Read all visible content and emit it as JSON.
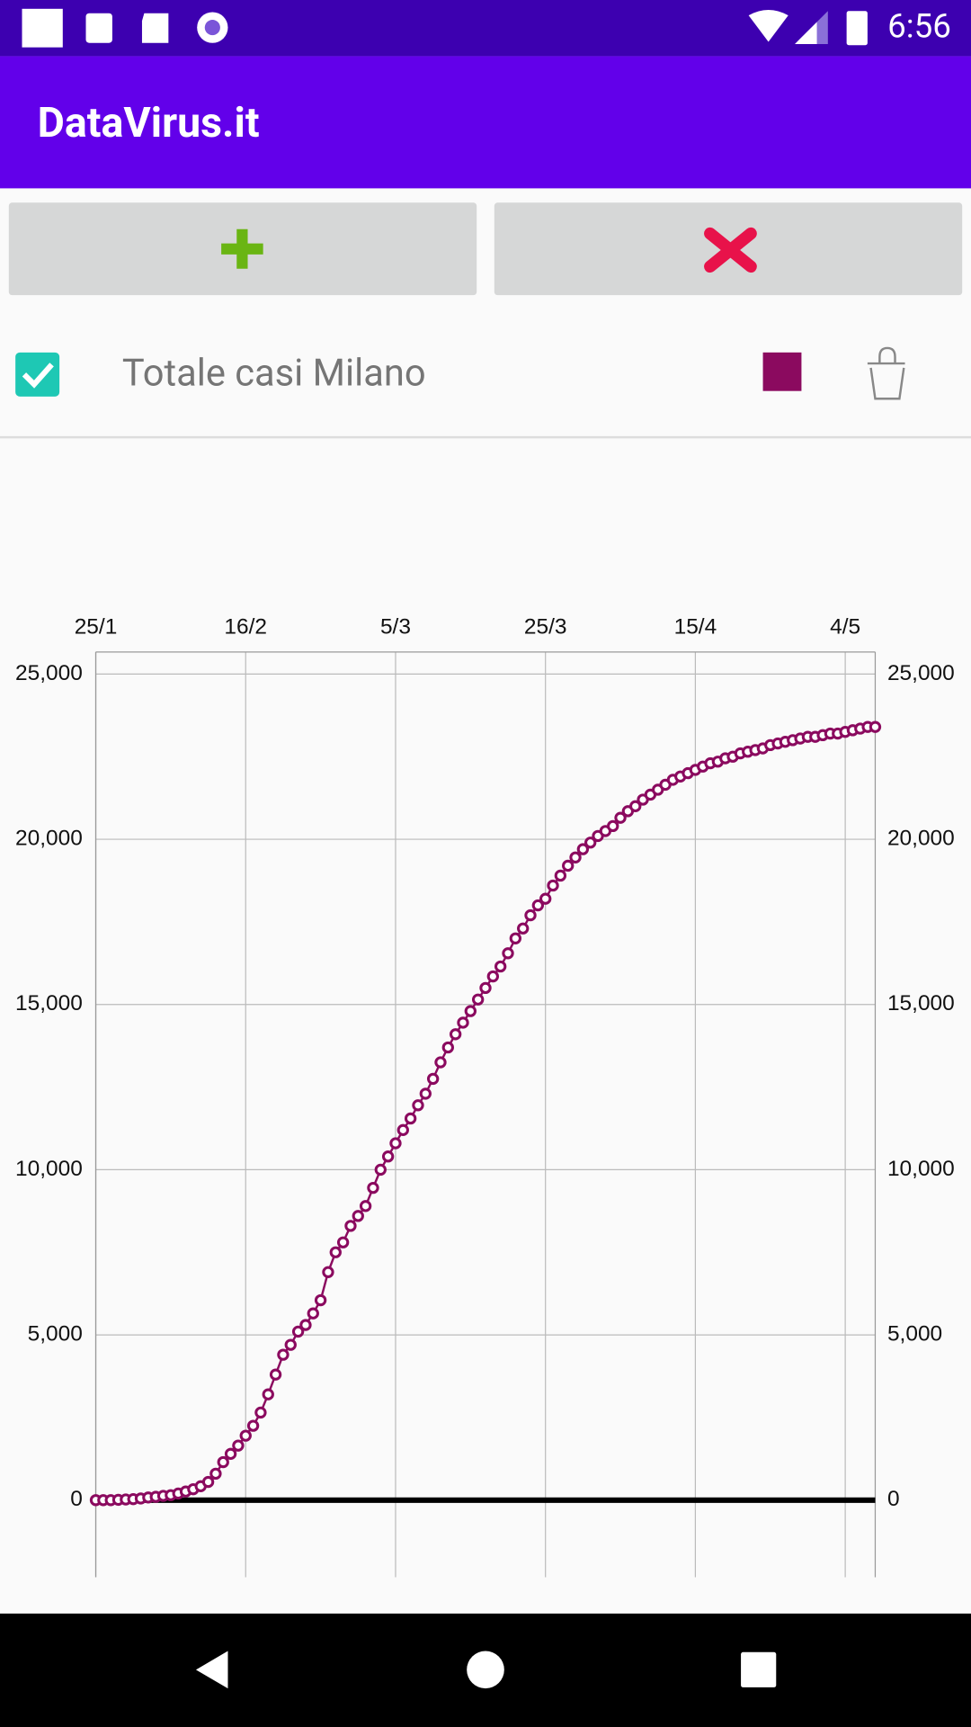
{
  "status_bar": {
    "time": "6:56"
  },
  "app_bar": {
    "title": "DataVirus.it"
  },
  "chart_data": {
    "type": "line",
    "categories": [
      "25/1",
      null,
      null,
      null,
      null,
      null,
      null,
      null,
      null,
      null,
      null,
      null,
      null,
      null,
      null,
      null,
      null,
      null,
      null,
      null,
      "16/2",
      null,
      null,
      null,
      null,
      null,
      null,
      null,
      null,
      null,
      null,
      null,
      null,
      null,
      null,
      null,
      null,
      null,
      null,
      null,
      "5/3",
      null,
      null,
      null,
      null,
      null,
      null,
      null,
      null,
      null,
      null,
      null,
      null,
      null,
      null,
      null,
      null,
      null,
      null,
      null,
      "25/3",
      null,
      null,
      null,
      null,
      null,
      null,
      null,
      null,
      null,
      null,
      null,
      null,
      null,
      null,
      null,
      null,
      null,
      null,
      null,
      "15/4",
      null,
      null,
      null,
      null,
      null,
      null,
      null,
      null,
      null,
      null,
      null,
      null,
      null,
      null,
      null,
      null,
      null,
      null,
      null,
      "4/5",
      null,
      null,
      null,
      null
    ],
    "series": [
      {
        "name": "Totale casi Milano",
        "color": "#8b0a5f",
        "values": [
          0,
          0,
          0,
          10,
          20,
          30,
          50,
          80,
          100,
          130,
          150,
          200,
          260,
          330,
          420,
          550,
          800,
          1150,
          1400,
          1650,
          1950,
          2250,
          2650,
          3200,
          3800,
          4400,
          4700,
          5100,
          5300,
          5650,
          6050,
          6900,
          7500,
          7800,
          8300,
          8600,
          8900,
          9450,
          10000,
          10400,
          10800,
          11200,
          11550,
          11950,
          12300,
          12750,
          13250,
          13700,
          14100,
          14450,
          14800,
          15150,
          15500,
          15850,
          16150,
          16550,
          17000,
          17300,
          17700,
          18000,
          18200,
          18600,
          18900,
          19200,
          19450,
          19700,
          19900,
          20100,
          20250,
          20400,
          20650,
          20850,
          21000,
          21200,
          21350,
          21500,
          21650,
          21800,
          21900,
          22000,
          22100,
          22200,
          22300,
          22350,
          22450,
          22500,
          22600,
          22650,
          22700,
          22750,
          22850,
          22900,
          22950,
          23000,
          23050,
          23100,
          23100,
          23150,
          23200,
          23200,
          23250,
          23300,
          23350,
          23400,
          23400
        ]
      }
    ],
    "ylim": [
      -2333,
      25667
    ],
    "yticks": [
      0,
      {
        "value": 5000,
        "label": "5,000"
      },
      {
        "value": 10000,
        "label": "10,000"
      },
      {
        "value": 15000,
        "label": "15,000"
      },
      {
        "value": 20000,
        "label": "20,000"
      },
      {
        "value": 25000,
        "label": "25,000"
      }
    ],
    "grid": true
  }
}
